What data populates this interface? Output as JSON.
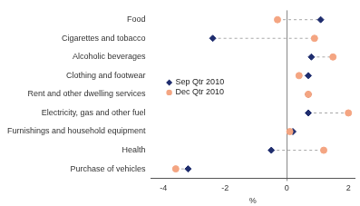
{
  "chart_data": {
    "type": "dot",
    "orientation": "horizontal",
    "x_label": "%",
    "categories": [
      "Food",
      "Cigarettes and tobacco",
      "Alcoholic beverages",
      "Clothing and footwear",
      "Rent and other dwelling services",
      "Electricity, gas and other fuel",
      "Furnishings and household equipment",
      "Health",
      "Purchase of vehicles"
    ],
    "series": [
      {
        "name": "Sep Qtr 2010",
        "color": "#1f2d6e",
        "marker": "diamond",
        "values": [
          1.1,
          -2.4,
          0.8,
          0.7,
          0.7,
          0.7,
          0.2,
          -0.5,
          -3.2
        ]
      },
      {
        "name": "Dec Qtr 2010",
        "color": "#f4a582",
        "marker": "circle",
        "values": [
          -0.3,
          0.9,
          1.5,
          0.4,
          0.7,
          2.0,
          0.1,
          1.2,
          -3.6
        ]
      }
    ],
    "xlim": [
      -4.4,
      2.2
    ],
    "xticks": [
      -4,
      -2,
      0,
      2
    ],
    "grid": false,
    "legend": "left"
  }
}
